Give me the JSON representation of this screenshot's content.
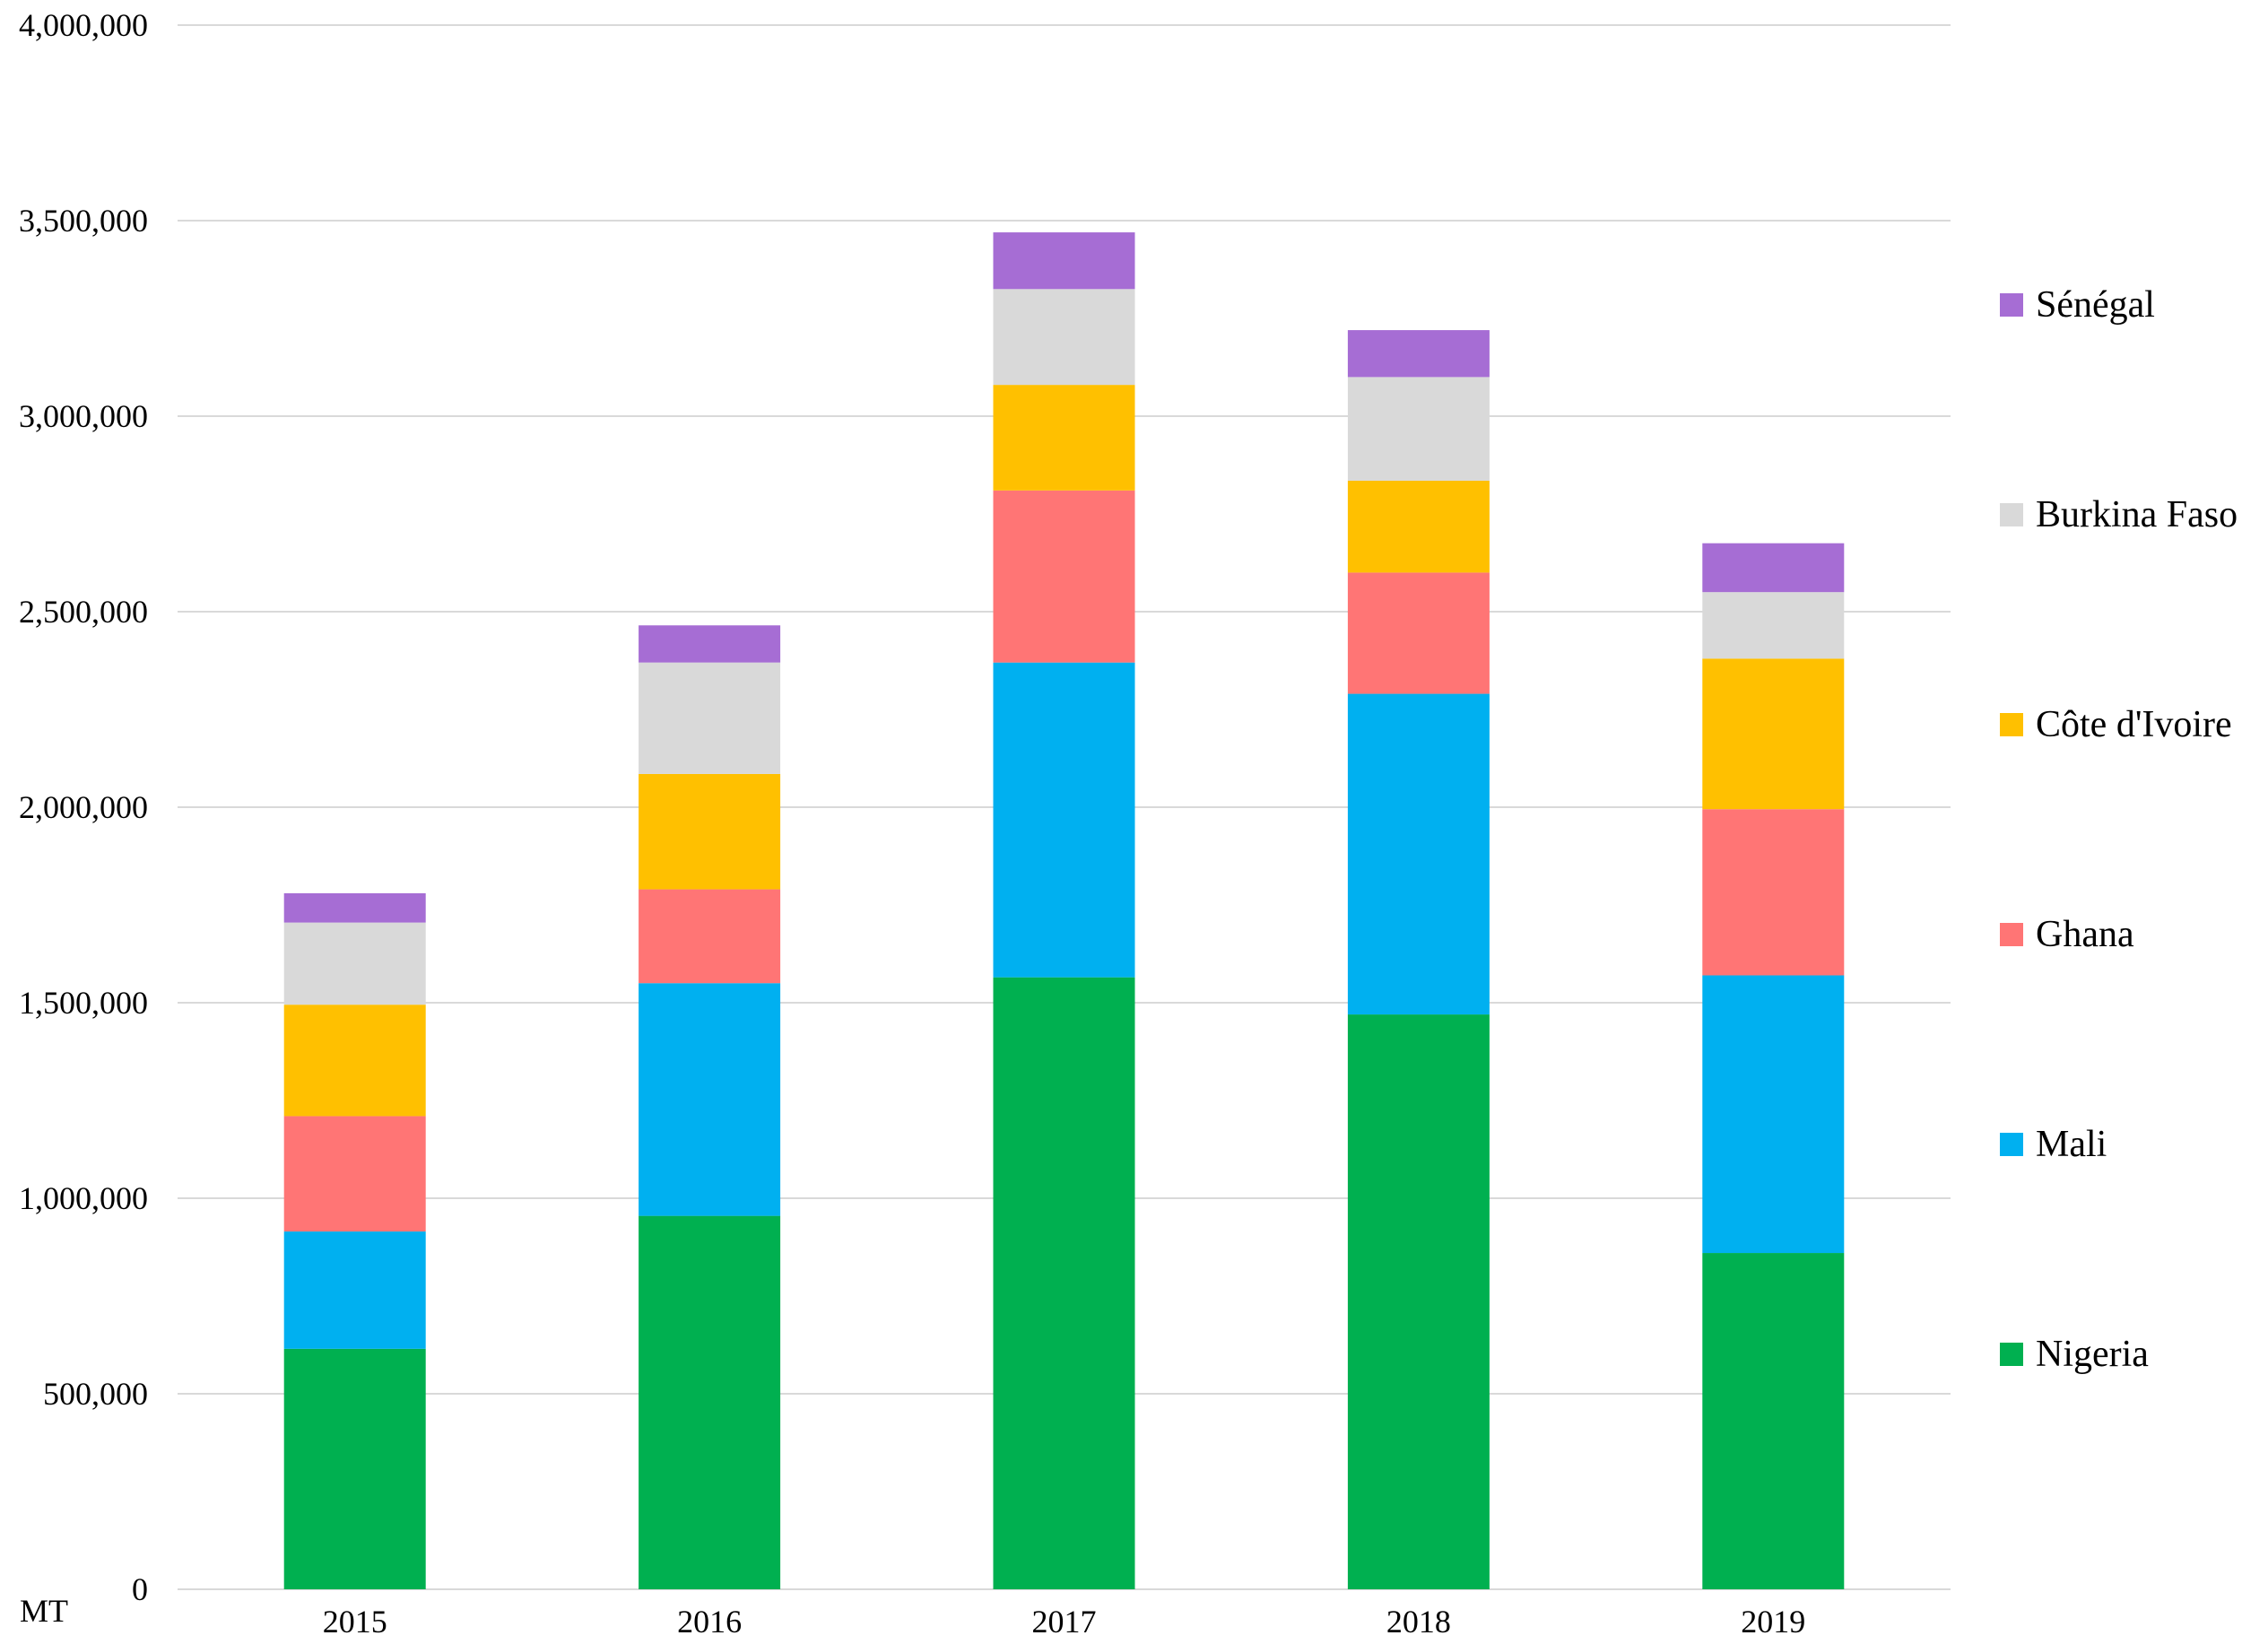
{
  "chart_data": {
    "type": "bar",
    "stacked": true,
    "categories": [
      "2015",
      "2016",
      "2017",
      "2018",
      "2019"
    ],
    "series": [
      {
        "name": "Nigeria",
        "color": "#00B050",
        "values": [
          615000,
          955000,
          1565000,
          1470000,
          860000
        ]
      },
      {
        "name": "Mali",
        "color": "#00B0F0",
        "values": [
          300000,
          595000,
          805000,
          820000,
          710000
        ]
      },
      {
        "name": "Ghana",
        "color": "#FF7575",
        "values": [
          295000,
          240000,
          440000,
          310000,
          425000
        ]
      },
      {
        "name": "Côte d'Ivoire",
        "color": "#FFC000",
        "values": [
          285000,
          295000,
          270000,
          235000,
          385000
        ]
      },
      {
        "name": "Burkina Faso",
        "color": "#D9D9D9",
        "values": [
          210000,
          285000,
          245000,
          265000,
          170000
        ]
      },
      {
        "name": "Sénégal",
        "color": "#A66DD4",
        "values": [
          75000,
          95000,
          145000,
          120000,
          125000
        ]
      }
    ],
    "y_ticks": [
      "0",
      "500,000",
      "1,000,000",
      "1,500,000",
      "2,000,000",
      "2,500,000",
      "3,000,000",
      "3,500,000",
      "4,000,000"
    ],
    "ylim": [
      0,
      4000000
    ],
    "ylabel": "MT",
    "grid": true,
    "legend_position": "right",
    "gridline_color": "#D9D9D9"
  }
}
